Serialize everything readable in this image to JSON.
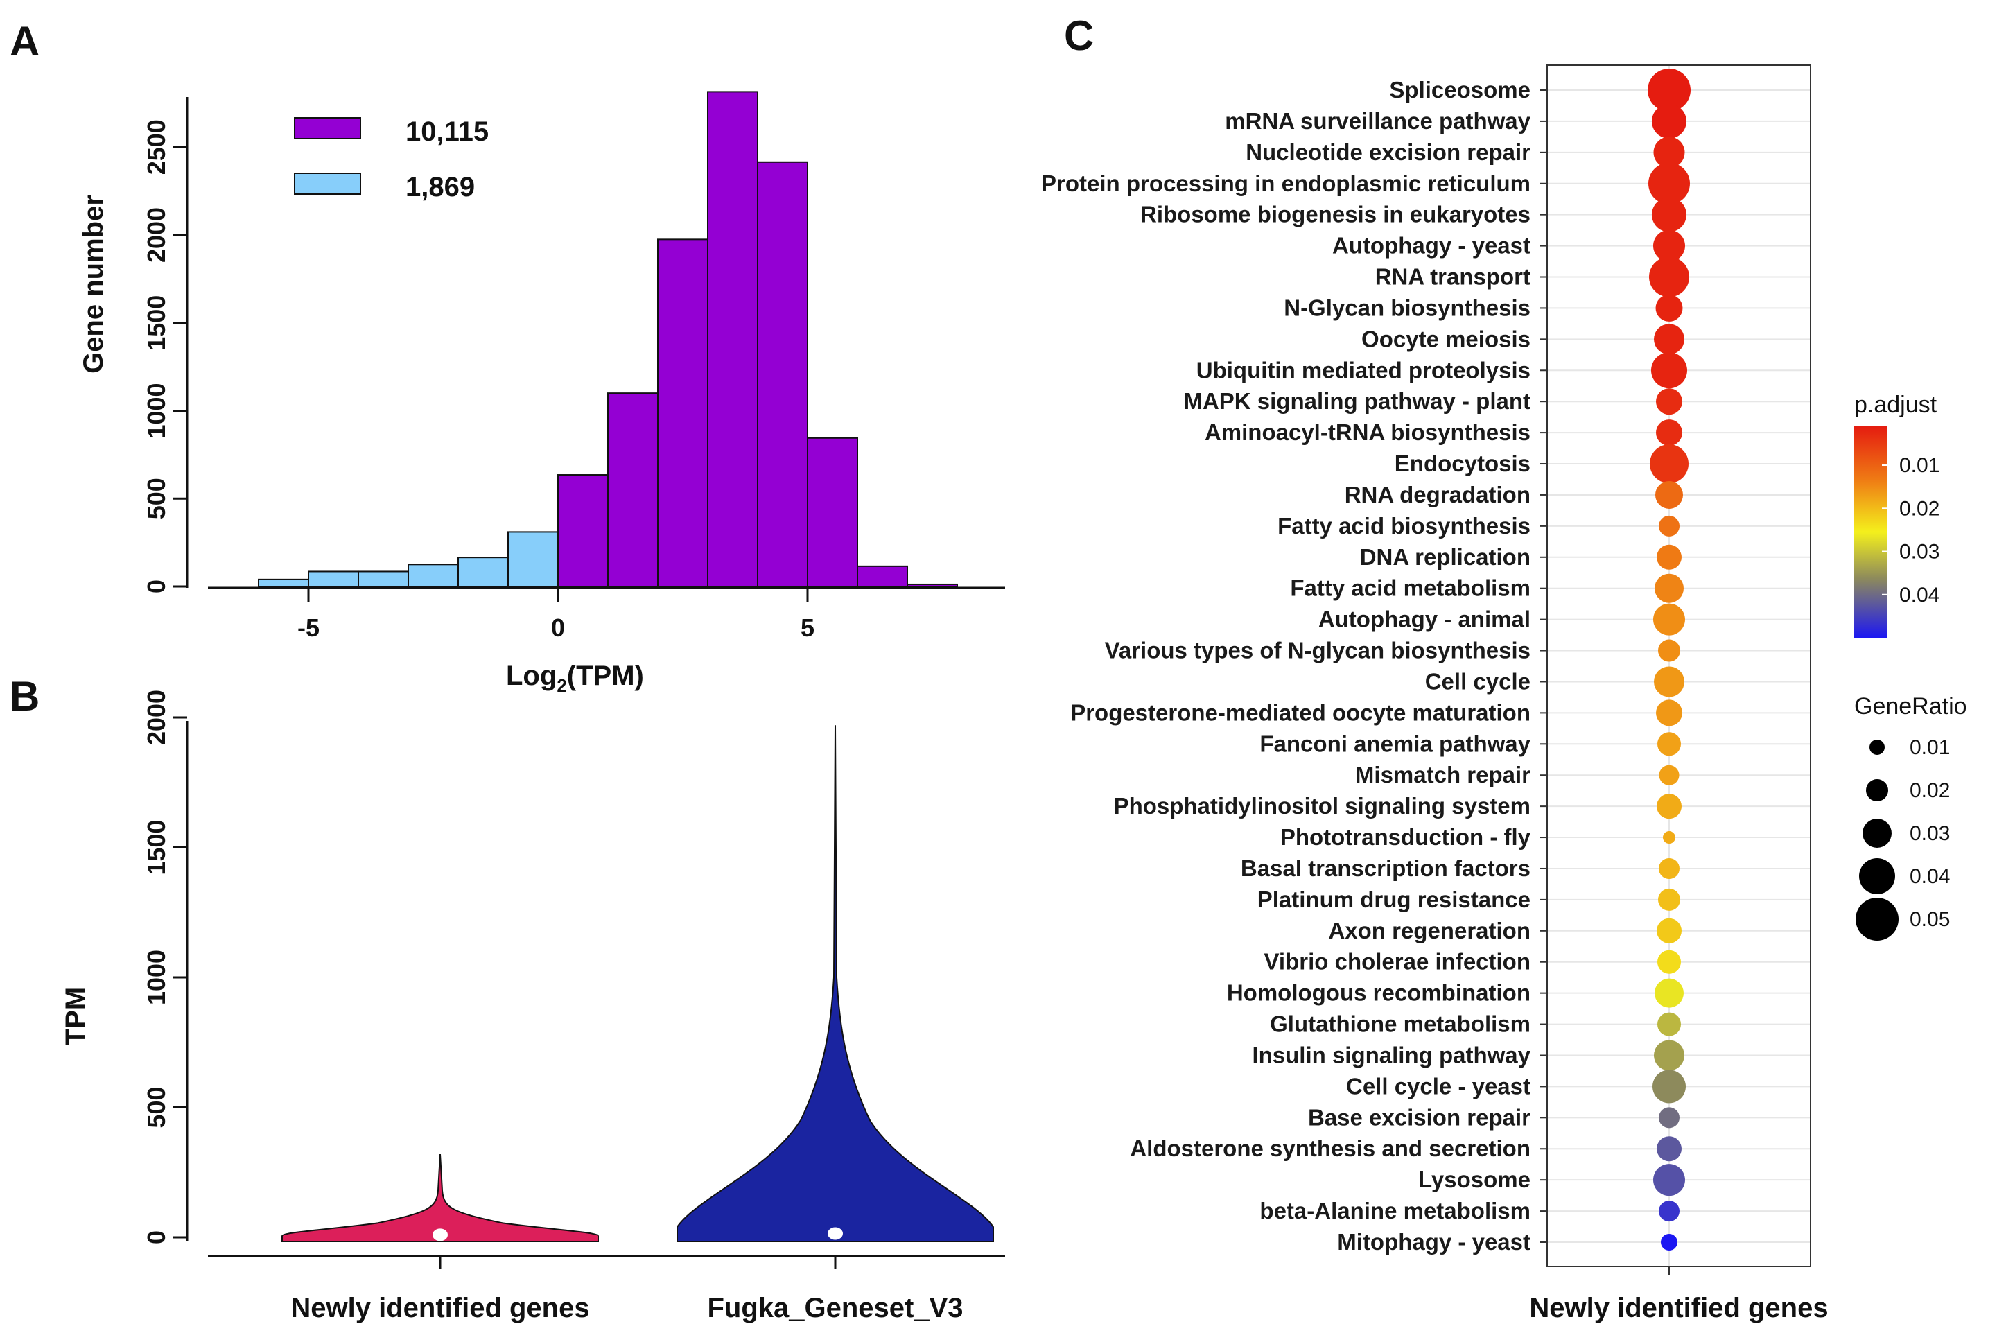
{
  "panel_labels": {
    "a": "A",
    "b": "B",
    "c": "C"
  },
  "chart_data": [
    {
      "panel": "A",
      "type": "bar",
      "title": "",
      "xlabel_main": "Log",
      "xlabel_sub": "2",
      "xlabel_rest": "(TPM)",
      "ylabel": "Gene number",
      "xlim": [
        -6.5,
        8.8
      ],
      "ylim": [
        0,
        2800
      ],
      "xticks": [
        -5,
        0,
        5
      ],
      "yticks": [
        0,
        500,
        1000,
        1500,
        2000,
        2500
      ],
      "legend_position": "top-left",
      "series": [
        {
          "name": "1,869",
          "color": "#87CEFA",
          "bins": [
            [
              -6,
              -5
            ],
            [
              -5,
              -4
            ],
            [
              -4,
              -3
            ],
            [
              -3,
              -2
            ],
            [
              -2,
              -1
            ],
            [
              -1,
              0
            ]
          ],
          "values": [
            40,
            85,
            85,
            125,
            165,
            310
          ]
        },
        {
          "name": "10,115",
          "color": "#9400D3",
          "bins": [
            [
              0,
              1
            ],
            [
              1,
              2
            ],
            [
              2,
              3
            ],
            [
              3,
              4
            ],
            [
              4,
              5
            ],
            [
              5,
              6
            ],
            [
              6,
              7
            ],
            [
              7,
              8
            ]
          ],
          "values": [
            635,
            1100,
            1975,
            2815,
            2415,
            845,
            115,
            12
          ]
        }
      ]
    },
    {
      "panel": "B",
      "type": "violin",
      "ylabel": "TPM",
      "ylim": [
        0,
        2000
      ],
      "yticks": [
        0,
        500,
        1000,
        1500,
        2000
      ],
      "categories": [
        "Newly identified genes",
        "Fugka_Geneset_V3"
      ],
      "colors": [
        "#DC1F5A",
        "#1A24A0"
      ],
      "max_values": [
        320,
        1970
      ],
      "median_values": [
        15,
        20
      ]
    },
    {
      "panel": "C",
      "type": "scatter",
      "xlabel": "Newly identified genes",
      "color_legend_title": "p.adjust",
      "color_ticks": [
        0.01,
        0.02,
        0.03,
        0.04
      ],
      "size_legend_title": "GeneRatio",
      "size_ticks": [
        0.01,
        0.02,
        0.03,
        0.04,
        0.05
      ],
      "pathways": [
        {
          "term": "Spliceosome",
          "gene_ratio": 0.05,
          "p_adjust": 0.001
        },
        {
          "term": "mRNA surveillance pathway",
          "gene_ratio": 0.038,
          "p_adjust": 0.001
        },
        {
          "term": "Nucleotide excision repair",
          "gene_ratio": 0.033,
          "p_adjust": 0.002
        },
        {
          "term": "Protein processing in endoplasmic reticulum",
          "gene_ratio": 0.048,
          "p_adjust": 0.002
        },
        {
          "term": "Ribosome biogenesis in eukaryotes",
          "gene_ratio": 0.038,
          "p_adjust": 0.002
        },
        {
          "term": "Autophagy - yeast",
          "gene_ratio": 0.034,
          "p_adjust": 0.002
        },
        {
          "term": "RNA transport",
          "gene_ratio": 0.046,
          "p_adjust": 0.002
        },
        {
          "term": "N-Glycan biosynthesis",
          "gene_ratio": 0.027,
          "p_adjust": 0.002
        },
        {
          "term": "Oocyte meiosis",
          "gene_ratio": 0.032,
          "p_adjust": 0.002
        },
        {
          "term": "Ubiquitin mediated proteolysis",
          "gene_ratio": 0.04,
          "p_adjust": 0.002
        },
        {
          "term": "MAPK signaling pathway - plant",
          "gene_ratio": 0.026,
          "p_adjust": 0.003
        },
        {
          "term": "Aminoacyl-tRNA biosynthesis",
          "gene_ratio": 0.026,
          "p_adjust": 0.003
        },
        {
          "term": "Endocytosis",
          "gene_ratio": 0.044,
          "p_adjust": 0.004
        },
        {
          "term": "RNA degradation",
          "gene_ratio": 0.028,
          "p_adjust": 0.011
        },
        {
          "term": "Fatty acid biosynthesis",
          "gene_ratio": 0.018,
          "p_adjust": 0.012
        },
        {
          "term": "DNA replication",
          "gene_ratio": 0.024,
          "p_adjust": 0.013
        },
        {
          "term": "Fatty acid metabolism",
          "gene_ratio": 0.03,
          "p_adjust": 0.014
        },
        {
          "term": "Autophagy - animal",
          "gene_ratio": 0.034,
          "p_adjust": 0.015
        },
        {
          "term": "Various types of N-glycan biosynthesis",
          "gene_ratio": 0.02,
          "p_adjust": 0.015
        },
        {
          "term": "Cell cycle",
          "gene_ratio": 0.032,
          "p_adjust": 0.016
        },
        {
          "term": "Progesterone-mediated oocyte maturation",
          "gene_ratio": 0.026,
          "p_adjust": 0.016
        },
        {
          "term": "Fanconi anemia pathway",
          "gene_ratio": 0.022,
          "p_adjust": 0.017
        },
        {
          "term": "Mismatch repair",
          "gene_ratio": 0.017,
          "p_adjust": 0.017
        },
        {
          "term": "Phosphatidylinositol signaling system",
          "gene_ratio": 0.024,
          "p_adjust": 0.018
        },
        {
          "term": "Phototransduction - fly",
          "gene_ratio": 0.006,
          "p_adjust": 0.018
        },
        {
          "term": "Basal transcription factors",
          "gene_ratio": 0.018,
          "p_adjust": 0.019
        },
        {
          "term": "Platinum drug resistance",
          "gene_ratio": 0.02,
          "p_adjust": 0.02
        },
        {
          "term": "Axon regeneration",
          "gene_ratio": 0.024,
          "p_adjust": 0.021
        },
        {
          "term": "Vibrio cholerae infection",
          "gene_ratio": 0.022,
          "p_adjust": 0.023
        },
        {
          "term": "Homologous recombination",
          "gene_ratio": 0.03,
          "p_adjust": 0.026
        },
        {
          "term": "Glutathione metabolism",
          "gene_ratio": 0.022,
          "p_adjust": 0.03
        },
        {
          "term": "Insulin signaling pathway",
          "gene_ratio": 0.032,
          "p_adjust": 0.032
        },
        {
          "term": "Cell cycle - yeast",
          "gene_ratio": 0.036,
          "p_adjust": 0.034
        },
        {
          "term": "Base excision repair",
          "gene_ratio": 0.018,
          "p_adjust": 0.038
        },
        {
          "term": "Aldosterone synthesis and secretion",
          "gene_ratio": 0.024,
          "p_adjust": 0.041
        },
        {
          "term": "Lysosome",
          "gene_ratio": 0.034,
          "p_adjust": 0.042
        },
        {
          "term": "beta-Alanine metabolism",
          "gene_ratio": 0.018,
          "p_adjust": 0.046
        },
        {
          "term": "Mitophagy - yeast",
          "gene_ratio": 0.012,
          "p_adjust": 0.05
        }
      ]
    }
  ]
}
